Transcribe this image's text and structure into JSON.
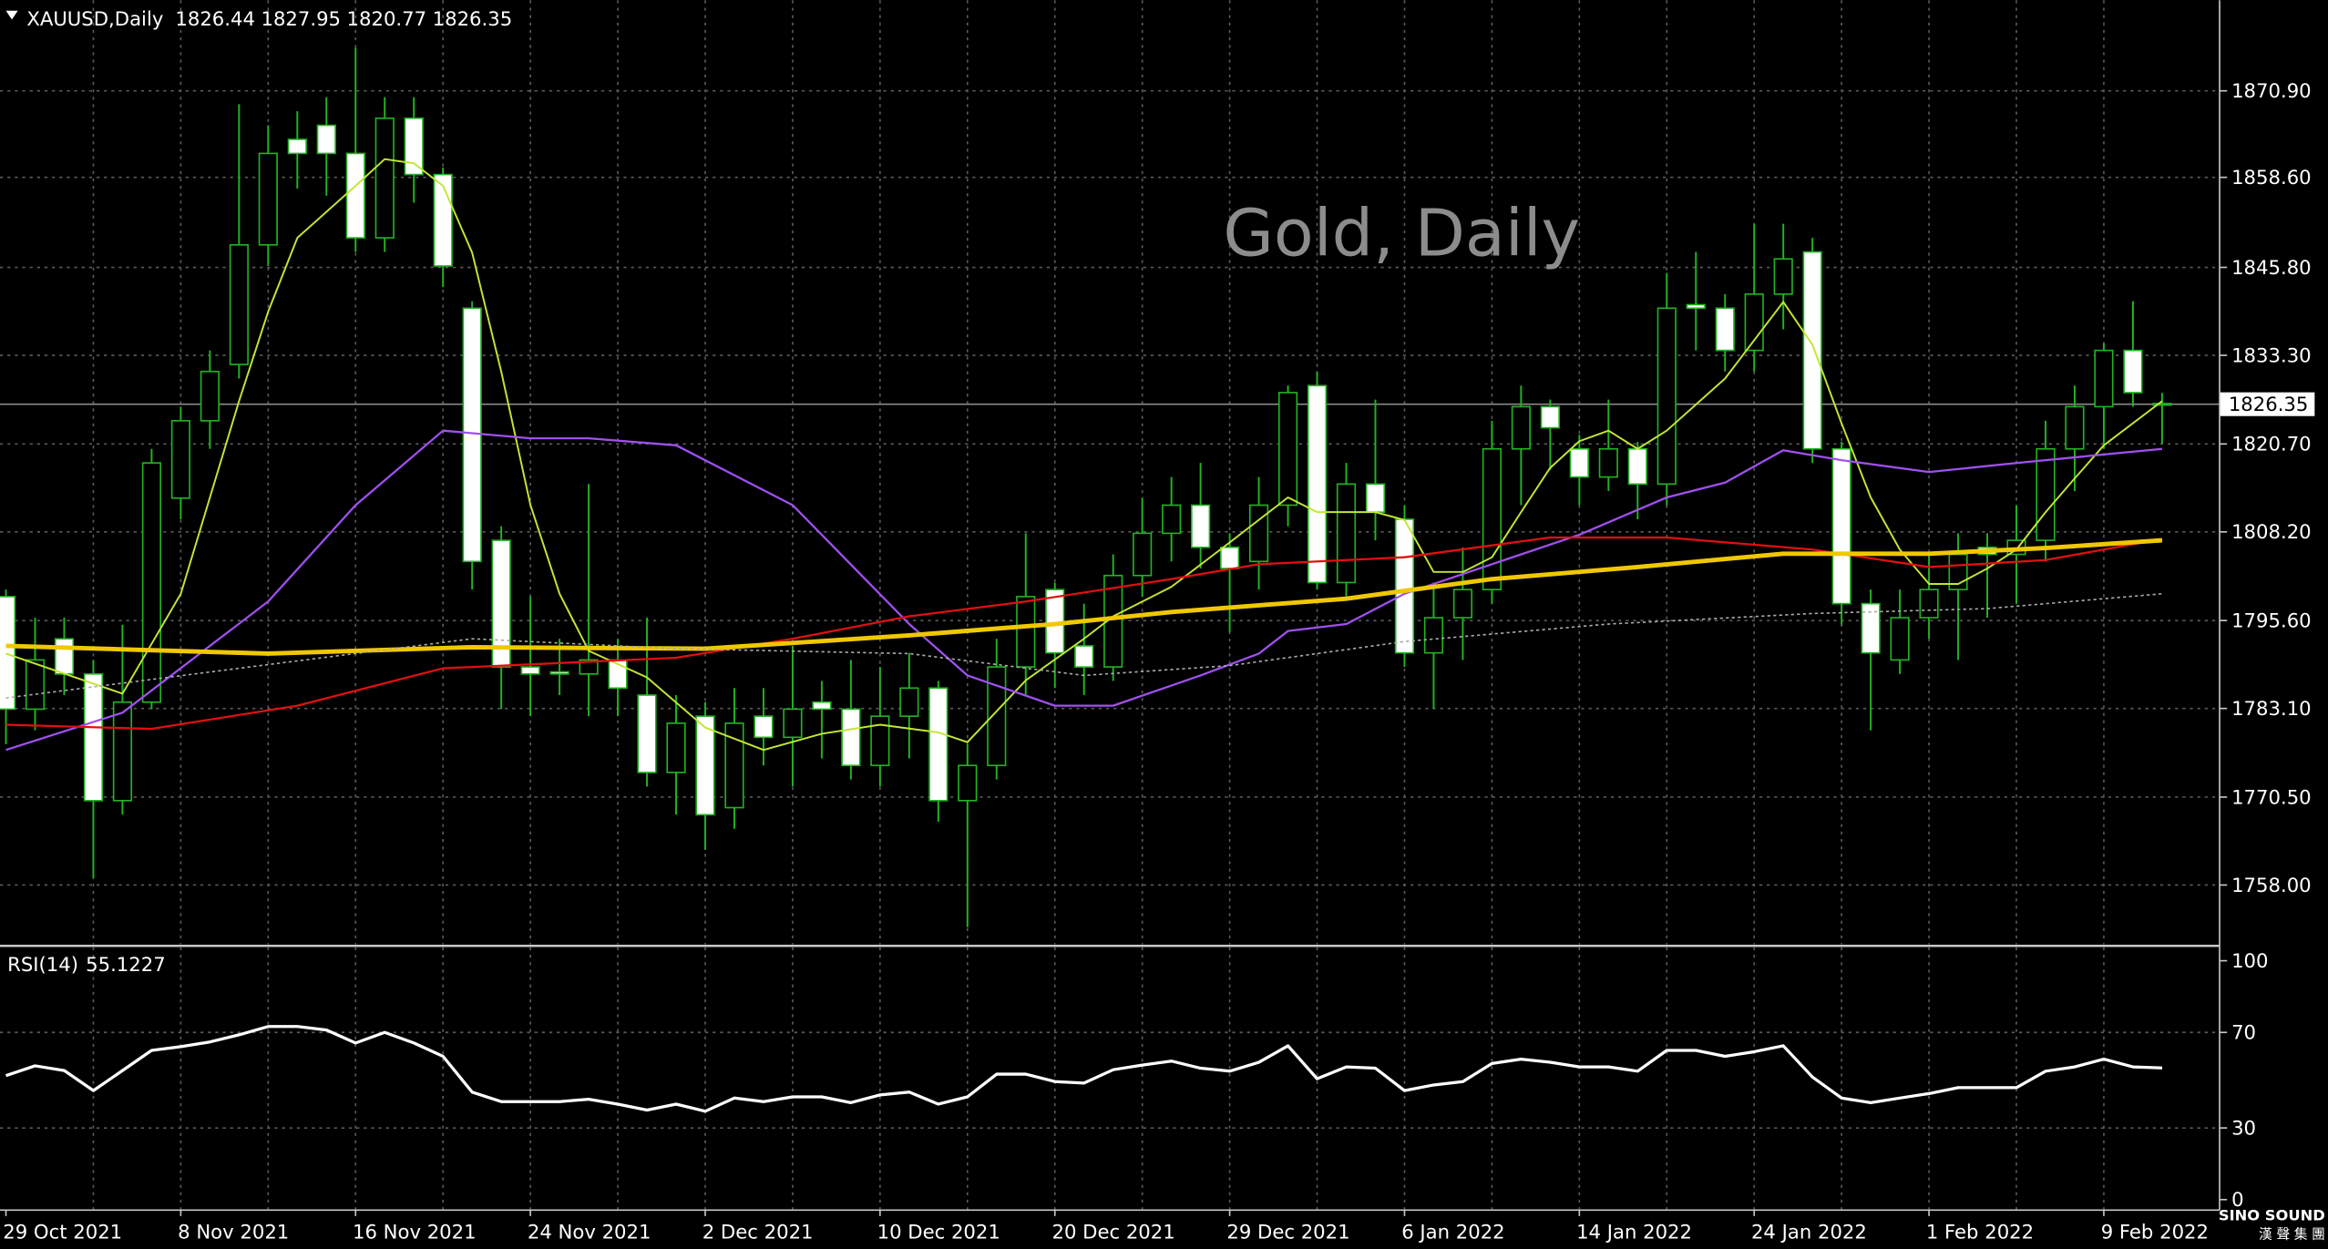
{
  "chart_data": {
    "type": "candlestick",
    "symbol": "XAUUSD,Daily",
    "title": "Gold, Daily",
    "categories": [
      "29 Oct 2021",
      null,
      null,
      null,
      null,
      null,
      "8 Nov 2021",
      null,
      null,
      null,
      null,
      null,
      "16 Nov 2021",
      null,
      null,
      null,
      null,
      null,
      "24 Nov 2021",
      null,
      null,
      null,
      null,
      null,
      "2 Dec 2021",
      null,
      null,
      null,
      null,
      null,
      "10 Dec 2021",
      null,
      null,
      null,
      null,
      null,
      "20 Dec 2021",
      null,
      null,
      null,
      null,
      null,
      "29 Dec 2021",
      null,
      null,
      null,
      null,
      null,
      "6 Jan 2022",
      null,
      null,
      null,
      null,
      null,
      "14 Jan 2022",
      null,
      null,
      null,
      null,
      null,
      "24 Jan 2022",
      null,
      null,
      null,
      null,
      null,
      "1 Feb 2022",
      null,
      null,
      null,
      null,
      null,
      "9 Feb 2022",
      null,
      null
    ],
    "open": [
      1799,
      1783,
      1793,
      1788,
      1770,
      1784,
      1813,
      1824,
      1832,
      1849,
      1864,
      1866,
      1862,
      1850,
      1867,
      1859,
      1840,
      1807,
      1789,
      1788.3,
      1788,
      1790,
      1785,
      1774,
      1782,
      1769,
      1782,
      1779,
      1784,
      1783,
      1775,
      1782,
      1786,
      1770,
      1775,
      1789,
      1800,
      1792,
      1789,
      1802,
      1808,
      1812,
      1806,
      1804,
      1812,
      1829,
      1801,
      1815,
      1810,
      1791,
      1796,
      1800,
      1820,
      1826,
      1820,
      1816,
      1820,
      1815,
      1840.5,
      1840,
      1834,
      1842,
      1848,
      1820,
      1798,
      1790,
      1796,
      1800,
      1806,
      1805,
      1807,
      1820,
      1826,
      1834,
      1826.44
    ],
    "high": [
      1800,
      1796,
      1796,
      1790,
      1795,
      1820,
      1826,
      1834,
      1869,
      1866,
      1868,
      1870,
      1877,
      1870,
      1870,
      1860,
      1841,
      1809,
      1799,
      1793,
      1815,
      1793,
      1796,
      1785,
      1784,
      1786,
      1786,
      1792,
      1787,
      1790,
      1789,
      1791,
      1787,
      1778,
      1793,
      1808,
      1801,
      1798,
      1805,
      1813,
      1816,
      1818,
      1808,
      1816,
      1829,
      1831,
      1818,
      1827,
      1812,
      1801,
      1806,
      1824,
      1829,
      1827,
      1822,
      1827,
      1821,
      1845,
      1848,
      1842,
      1852,
      1852,
      1850,
      1821,
      1800,
      1800,
      1805,
      1808,
      1808,
      1812,
      1824,
      1829,
      1835,
      1841,
      1827.95
    ],
    "low": [
      1778,
      1780,
      1785,
      1759,
      1768,
      1783,
      1810,
      1820,
      1830,
      1846,
      1857,
      1856,
      1848,
      1848,
      1855,
      1843,
      1800,
      1783,
      1782,
      1785,
      1782,
      1782,
      1772,
      1768,
      1763,
      1766,
      1775,
      1772,
      1776,
      1773,
      1772,
      1776,
      1767,
      1752,
      1773,
      1785,
      1786,
      1785,
      1787,
      1799,
      1804,
      1803,
      1794,
      1800,
      1809,
      1800,
      1799,
      1807,
      1789,
      1783,
      1790,
      1798,
      1812,
      1817,
      1812,
      1814,
      1810,
      1812,
      1834,
      1831,
      1831,
      1837,
      1818,
      1795,
      1780,
      1788,
      1793,
      1790,
      1796,
      1798,
      1804,
      1814,
      1820,
      1826,
      1820.77
    ],
    "close": [
      1783,
      1790,
      1788,
      1770,
      1784,
      1818,
      1824,
      1831,
      1849,
      1862,
      1862,
      1862,
      1850,
      1867,
      1859,
      1846,
      1804,
      1789,
      1788,
      1788,
      1790,
      1786,
      1774,
      1781,
      1768,
      1781,
      1779,
      1783,
      1783,
      1775,
      1782,
      1786,
      1770,
      1775,
      1789,
      1799,
      1791,
      1789,
      1802,
      1808,
      1812,
      1806,
      1803,
      1812,
      1828,
      1801,
      1815,
      1811,
      1791,
      1796,
      1800,
      1820,
      1826,
      1823,
      1816,
      1820,
      1815,
      1840,
      1840,
      1834,
      1842,
      1847,
      1820,
      1798,
      1791,
      1796,
      1800,
      1805,
      1805,
      1807,
      1820,
      1826,
      1834,
      1828,
      1826.35
    ],
    "up_color": "#000000",
    "down_color": "#ffffff",
    "wick_color": "#22b322",
    "ylim": [
      1749.56,
      1883.77
    ],
    "yticks": [
      {
        "value": 1870.9,
        "label": "1870.90"
      },
      {
        "value": 1858.6,
        "label": "1858.60"
      },
      {
        "value": 1845.8,
        "label": "1845.80"
      },
      {
        "value": 1833.3,
        "label": "1833.30"
      },
      {
        "value": 1820.7,
        "label": "1820.70"
      },
      {
        "value": 1808.2,
        "label": "1808.20"
      },
      {
        "value": 1795.6,
        "label": "1795.60"
      },
      {
        "value": 1783.1,
        "label": "1783.10"
      },
      {
        "value": 1770.5,
        "label": "1770.50"
      },
      {
        "value": 1758,
        "label": "1758.00"
      }
    ],
    "grid": true,
    "last_price": 1826.35,
    "overlays": [
      {
        "color": "#c3e634",
        "width": 1.2,
        "dash": false,
        "x": [
          0,
          4,
          6,
          8,
          9,
          10,
          12,
          13,
          14,
          15,
          16,
          17,
          18,
          19,
          20,
          22,
          24,
          26,
          28,
          30,
          32,
          33,
          35,
          37,
          38,
          40,
          42,
          44,
          45,
          47,
          48,
          49,
          50,
          51,
          52,
          53,
          54,
          55,
          56,
          57,
          59,
          61,
          62,
          63,
          64,
          65,
          66,
          67,
          68,
          69,
          70,
          71,
          72,
          74
        ],
        "values": [
          1790.9,
          1785.2,
          1799.4,
          1826.8,
          1839.5,
          1850.0,
          1857.4,
          1861.2,
          1860.6,
          1857.4,
          1847.9,
          1831.0,
          1812.0,
          1799.4,
          1791.3,
          1787.5,
          1780.4,
          1777.2,
          1779.5,
          1780.8,
          1779.7,
          1778.3,
          1787.1,
          1793.0,
          1796.2,
          1800.4,
          1806.7,
          1813.1,
          1811.0,
          1811.0,
          1809.9,
          1802.5,
          1802.5,
          1804.6,
          1811.0,
          1817.3,
          1821.1,
          1822.6,
          1820.0,
          1822.6,
          1830.0,
          1840.9,
          1834.8,
          1823.6,
          1813.1,
          1805.7,
          1800.8,
          1800.8,
          1803.0,
          1805.7,
          1811.0,
          1815.8,
          1820.5,
          1826.8
        ]
      },
      {
        "color": "#a050f0",
        "width": 1.4,
        "dash": false,
        "x": [
          0,
          4,
          9,
          12,
          15,
          18,
          20,
          23,
          27,
          31,
          33,
          36,
          38,
          41,
          43,
          44,
          46,
          48,
          51,
          54,
          57,
          59,
          61,
          63,
          66,
          69,
          72,
          74
        ],
        "values": [
          1777.2,
          1782.5,
          1798.3,
          1812.0,
          1822.6,
          1821.5,
          1821.5,
          1820.5,
          1812.0,
          1795.1,
          1787.8,
          1783.5,
          1783.5,
          1787.8,
          1790.9,
          1794.1,
          1795.1,
          1799.4,
          1803.6,
          1807.8,
          1813.1,
          1815.2,
          1819.8,
          1818.4,
          1816.7,
          1818.0,
          1819.2,
          1820.0
        ]
      },
      {
        "color": "#e01010",
        "width": 1.4,
        "dash": false,
        "x": [
          0,
          5,
          10,
          15,
          23,
          27,
          31,
          35,
          40,
          43,
          48,
          53,
          57,
          62,
          66,
          70,
          74
        ],
        "values": [
          1780.8,
          1780.2,
          1783.5,
          1788.8,
          1790.3,
          1793.0,
          1796.2,
          1798.3,
          1801.5,
          1803.6,
          1804.6,
          1807.4,
          1807.4,
          1805.7,
          1803.2,
          1804.2,
          1807.2
        ]
      },
      {
        "color": "#f0c800",
        "width": 3,
        "dash": false,
        "x": [
          0,
          9,
          16,
          24,
          31,
          36,
          40,
          46,
          51,
          56,
          61,
          66,
          70,
          74
        ],
        "values": [
          1792.0,
          1790.9,
          1791.8,
          1791.6,
          1793.5,
          1795.1,
          1796.8,
          1798.7,
          1801.5,
          1803.2,
          1805.1,
          1805.1,
          1805.9,
          1807.0
        ]
      },
      {
        "color": "#aaaaaa",
        "width": 1,
        "dash": true,
        "x": [
          0,
          8,
          16,
          23,
          31,
          37,
          42,
          48,
          55,
          62,
          68,
          74
        ],
        "values": [
          1784.6,
          1788.8,
          1793.0,
          1791.6,
          1790.9,
          1787.8,
          1789.2,
          1792.6,
          1795.1,
          1796.6,
          1797.3,
          1799.4
        ]
      }
    ],
    "indicator": {
      "type": "line",
      "name": "RSI(14)",
      "color": "#ffffff",
      "values": [
        51.9,
        56,
        54,
        45.6,
        54,
        62.5,
        64,
        66,
        69,
        72.5,
        72.5,
        71,
        65.6,
        70,
        65.6,
        60,
        45,
        41,
        41,
        41,
        42,
        40,
        37.5,
        40,
        37,
        42.5,
        41,
        43,
        43,
        40.6,
        43.8,
        45,
        40,
        43,
        52.5,
        52.5,
        49.4,
        48.8,
        54.4,
        56.3,
        58,
        55,
        53.8,
        57.5,
        64.4,
        50.6,
        55.6,
        55,
        45.6,
        48,
        49.4,
        57,
        58.8,
        57.5,
        55.6,
        55.6,
        53.8,
        62.5,
        62.5,
        60,
        61.9,
        64.4,
        51.3,
        42.5,
        40.6,
        42.5,
        44.4,
        46.9,
        46.9,
        46.9,
        53.8,
        55.6,
        58.8,
        55.6,
        55.1227
      ],
      "ylim": [
        -4.4,
        105.6
      ],
      "yticks": [
        100,
        70,
        30,
        0
      ]
    },
    "watermark": "SINO SOUND",
    "watermark_sub": "漢 聲 集 團"
  }
}
